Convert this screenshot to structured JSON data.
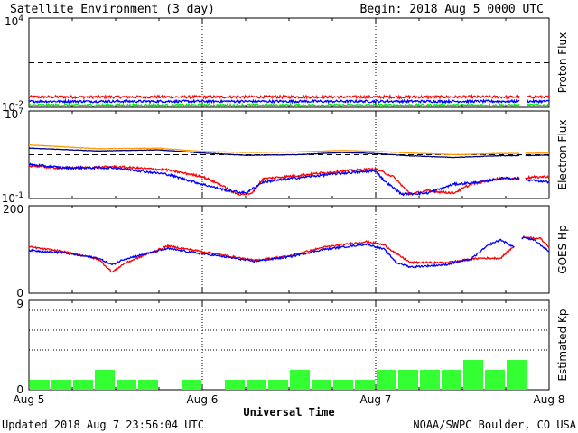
{
  "header": {
    "title": "Satellite Environment (3 day)",
    "begin": "Begin:  2018 Aug 5 0000 UTC"
  },
  "footer": {
    "updated": "Updated 2018 Aug  7 23:56:04 UTC",
    "credit": "NOAA/SWPC Boulder, CO USA"
  },
  "xaxis": {
    "label": "Universal Time",
    "ticks": [
      "Aug 5",
      "Aug 6",
      "Aug 7",
      "Aug 8"
    ],
    "range_days": [
      0,
      3
    ]
  },
  "colors": {
    "red": "#ff0000",
    "blue": "#0000ff",
    "green": "#00ee00",
    "orange": "#ff9900",
    "navy": "#000080",
    "bar": "#33ff33"
  },
  "chart_data": [
    {
      "type": "line",
      "ylabel": "Proton Flux",
      "yscale": "log",
      "ylim_exp": [
        -2,
        4
      ],
      "ytick_labels": [
        {
          "base": "10",
          "exp": "4"
        },
        {
          "base": "10",
          "exp": "-2"
        }
      ],
      "threshold_exp": 1,
      "gaps": [
        [
          2.83,
          2.87
        ]
      ],
      "series": [
        {
          "color": "red",
          "values": [
            [
              0,
              -1.3
            ],
            [
              3,
              -1.3
            ]
          ],
          "noise": 0.09
        },
        {
          "color": "blue",
          "values": [
            [
              0,
              -1.6
            ],
            [
              3,
              -1.6
            ]
          ],
          "noise": 0.08
        },
        {
          "color": "green",
          "values": [
            [
              0,
              -1.85
            ],
            [
              3,
              -1.85
            ]
          ],
          "noise": 0.08
        }
      ]
    },
    {
      "type": "line",
      "ylabel": "Electron Flux",
      "yscale": "log",
      "ylim_exp": [
        -1,
        7
      ],
      "ytick_labels": [
        {
          "base": "10",
          "exp": "7"
        },
        {
          "base": "10",
          "exp": "-1"
        }
      ],
      "threshold_exp": 3,
      "gaps": [
        [
          2.83,
          2.86
        ]
      ],
      "series": [
        {
          "color": "orange",
          "noise": 0.02,
          "values": [
            [
              0,
              3.9
            ],
            [
              0.4,
              3.55
            ],
            [
              0.75,
              3.6
            ],
            [
              1.0,
              3.3
            ],
            [
              1.25,
              3.2
            ],
            [
              1.55,
              3.25
            ],
            [
              1.8,
              3.4
            ],
            [
              2.0,
              3.3
            ],
            [
              2.2,
              3.15
            ],
            [
              2.45,
              3.0
            ],
            [
              2.7,
              3.1
            ],
            [
              3.0,
              3.15
            ]
          ]
        },
        {
          "color": "navy",
          "noise": 0.02,
          "values": [
            [
              0,
              3.6
            ],
            [
              0.4,
              3.35
            ],
            [
              0.75,
              3.45
            ],
            [
              1.0,
              3.15
            ],
            [
              1.25,
              2.95
            ],
            [
              1.55,
              3.0
            ],
            [
              1.8,
              3.2
            ],
            [
              2.0,
              3.1
            ],
            [
              2.2,
              2.9
            ],
            [
              2.45,
              2.75
            ],
            [
              2.7,
              2.9
            ],
            [
              3.0,
              2.95
            ]
          ]
        },
        {
          "color": "red",
          "noise": 0.1,
          "values": [
            [
              0,
              2.0
            ],
            [
              0.2,
              1.75
            ],
            [
              0.5,
              1.9
            ],
            [
              0.8,
              1.6
            ],
            [
              1.0,
              1.0
            ],
            [
              1.1,
              0.3
            ],
            [
              1.2,
              -0.6
            ],
            [
              1.28,
              -0.6
            ],
            [
              1.35,
              0.8
            ],
            [
              1.55,
              1.1
            ],
            [
              1.8,
              1.5
            ],
            [
              2.0,
              1.7
            ],
            [
              2.1,
              1.0
            ],
            [
              2.2,
              -0.6
            ],
            [
              2.3,
              -0.3
            ],
            [
              2.45,
              -0.5
            ],
            [
              2.55,
              0.3
            ],
            [
              2.7,
              0.8
            ],
            [
              3.0,
              1.0
            ]
          ]
        },
        {
          "color": "blue",
          "noise": 0.1,
          "values": [
            [
              0,
              2.1
            ],
            [
              0.2,
              1.8
            ],
            [
              0.5,
              1.8
            ],
            [
              0.8,
              1.2
            ],
            [
              1.0,
              0.3
            ],
            [
              1.15,
              -0.3
            ],
            [
              1.25,
              -0.5
            ],
            [
              1.35,
              0.5
            ],
            [
              1.55,
              0.9
            ],
            [
              1.8,
              1.3
            ],
            [
              2.0,
              1.5
            ],
            [
              2.05,
              0.6
            ],
            [
              2.15,
              -0.6
            ],
            [
              2.3,
              -0.5
            ],
            [
              2.45,
              0.3
            ],
            [
              2.6,
              0.5
            ],
            [
              2.75,
              0.9
            ],
            [
              3.0,
              0.5
            ]
          ]
        }
      ]
    },
    {
      "type": "line",
      "ylabel": "GOES Hp",
      "yscale": "linear",
      "ylim": [
        0,
        200
      ],
      "ytick_labels": [
        "200",
        "0"
      ],
      "gaps": [
        [
          2.8,
          2.84
        ]
      ],
      "series": [
        {
          "color": "red",
          "noise": 2,
          "values": [
            [
              0,
              106
            ],
            [
              0.2,
              95
            ],
            [
              0.4,
              78
            ],
            [
              0.48,
              48
            ],
            [
              0.55,
              68
            ],
            [
              0.8,
              108
            ],
            [
              1.0,
              95
            ],
            [
              1.15,
              85
            ],
            [
              1.3,
              75
            ],
            [
              1.5,
              85
            ],
            [
              1.7,
              105
            ],
            [
              1.95,
              118
            ],
            [
              2.05,
              110
            ],
            [
              2.12,
              90
            ],
            [
              2.2,
              70
            ],
            [
              2.4,
              70
            ],
            [
              2.6,
              80
            ],
            [
              2.72,
              80
            ],
            [
              2.8,
              108
            ],
            [
              2.85,
              128
            ],
            [
              2.95,
              125
            ],
            [
              3.0,
              105
            ]
          ]
        },
        {
          "color": "blue",
          "noise": 2,
          "values": [
            [
              0,
              98
            ],
            [
              0.2,
              92
            ],
            [
              0.4,
              80
            ],
            [
              0.48,
              65
            ],
            [
              0.55,
              78
            ],
            [
              0.8,
              102
            ],
            [
              1.0,
              90
            ],
            [
              1.15,
              82
            ],
            [
              1.3,
              73
            ],
            [
              1.5,
              83
            ],
            [
              1.7,
              100
            ],
            [
              1.95,
              112
            ],
            [
              2.05,
              100
            ],
            [
              2.12,
              70
            ],
            [
              2.2,
              60
            ],
            [
              2.4,
              65
            ],
            [
              2.55,
              78
            ],
            [
              2.65,
              110
            ],
            [
              2.72,
              122
            ],
            [
              2.8,
              105
            ],
            [
              2.85,
              128
            ],
            [
              2.92,
              120
            ],
            [
              3.0,
              95
            ]
          ]
        }
      ]
    },
    {
      "type": "bar",
      "ylabel": "Estimated Kp",
      "ylim": [
        0,
        9
      ],
      "ytick_labels": [
        "9",
        "0"
      ],
      "dotted_levels": [
        4,
        6,
        8
      ],
      "values": [
        1,
        1,
        1,
        2,
        1,
        1,
        0,
        1,
        0,
        1,
        1,
        1,
        2,
        1,
        1,
        1,
        2,
        2,
        2,
        2,
        3,
        2,
        3,
        0
      ]
    }
  ]
}
